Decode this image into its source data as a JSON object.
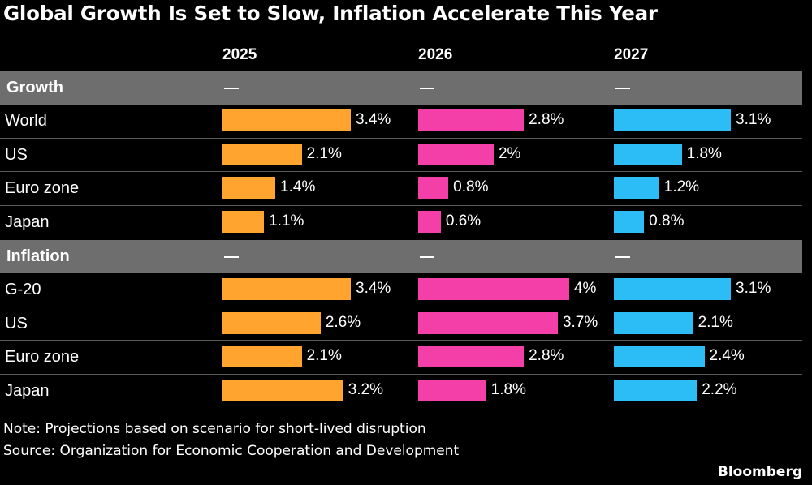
{
  "chart_data": {
    "type": "bar",
    "title": "Global Growth Is Set to Slow, Inflation Accelerate This Year",
    "columns": [
      "2025",
      "2026",
      "2027"
    ],
    "column_colors": [
      "#ffa42e",
      "#f53fa8",
      "#2cbcf6"
    ],
    "sections": [
      {
        "name": "Growth",
        "placeholder": "—",
        "rows": [
          {
            "label": "World",
            "values": [
              3.4,
              2.8,
              3.1
            ],
            "labels": [
              "3.4%",
              "2.8%",
              "3.1%"
            ]
          },
          {
            "label": "US",
            "values": [
              2.1,
              2.0,
              1.8
            ],
            "labels": [
              "2.1%",
              "2%",
              "1.8%"
            ]
          },
          {
            "label": "Euro zone",
            "values": [
              1.4,
              0.8,
              1.2
            ],
            "labels": [
              "1.4%",
              "0.8%",
              "1.2%"
            ]
          },
          {
            "label": "Japan",
            "values": [
              1.1,
              0.6,
              0.8
            ],
            "labels": [
              "1.1%",
              "0.6%",
              "0.8%"
            ]
          }
        ]
      },
      {
        "name": "Inflation",
        "placeholder": "—",
        "rows": [
          {
            "label": "G-20",
            "values": [
              3.4,
              4.0,
              3.1
            ],
            "labels": [
              "3.4%",
              "4%",
              "3.1%"
            ]
          },
          {
            "label": "US",
            "values": [
              2.6,
              3.7,
              2.1
            ],
            "labels": [
              "2.6%",
              "3.7%",
              "2.1%"
            ]
          },
          {
            "label": "Euro zone",
            "values": [
              2.1,
              2.8,
              2.4
            ],
            "labels": [
              "2.1%",
              "2.8%",
              "2.4%"
            ]
          },
          {
            "label": "Japan",
            "values": [
              3.2,
              1.8,
              2.2
            ],
            "labels": [
              "3.2%",
              "1.8%",
              "2.2%"
            ]
          }
        ]
      }
    ]
  },
  "notes": {
    "note": "Note: Projections based on scenario for short-lived disruption",
    "source": "Source: Organization for Economic Cooperation and Development"
  },
  "brand": "Bloomberg"
}
